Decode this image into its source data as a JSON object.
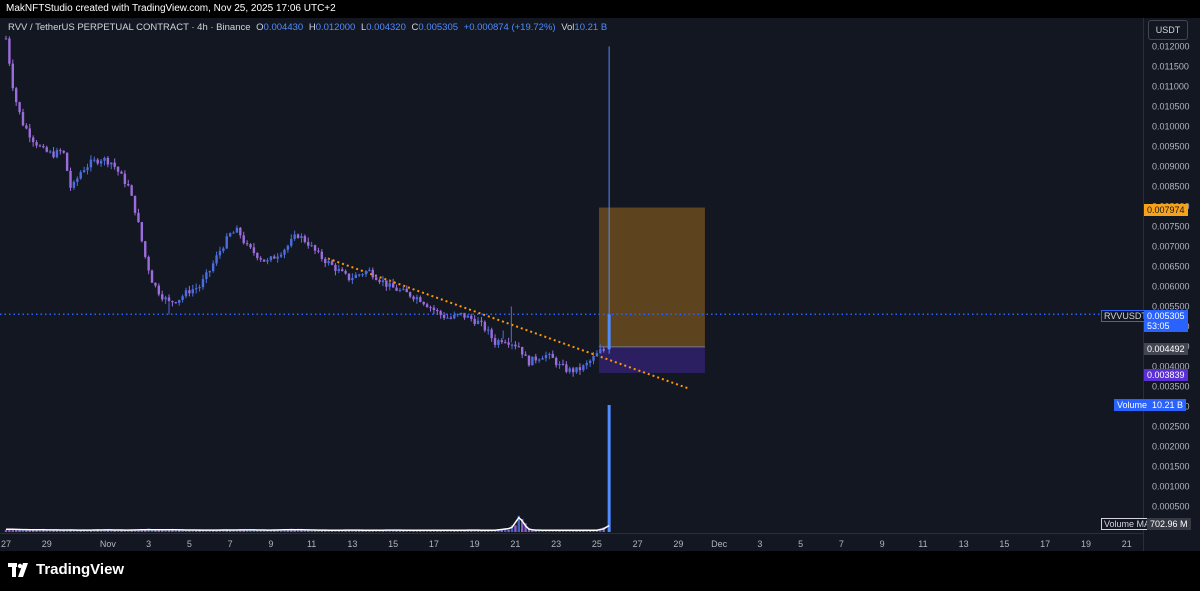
{
  "header": {
    "credit": "MakNFTStudio created with TradingView.com, Nov 25, 2025 17:06 UTC+2"
  },
  "legend": {
    "symbol": "RVV / TetherUS PERPETUAL CONTRACT · 4h · Binance",
    "o_label": "O",
    "o_value": "0.004430",
    "h_label": "H",
    "h_value": "0.012000",
    "l_label": "L",
    "l_value": "0.004320",
    "c_label": "C",
    "c_value": "0.005305",
    "change": "+0.000874 (+19.72%)",
    "vol_label": "Vol",
    "vol_value": "10.21 B"
  },
  "axis_unit": "USDT",
  "price_tags": {
    "target": {
      "value": "0.007974",
      "color": "#f7a21b"
    },
    "current": {
      "symbol": "RVVUSDT.P",
      "value": "0.005305",
      "countdown": "53:05",
      "color": "#2962ff"
    },
    "entry": {
      "value": "0.004492",
      "color": "#434651"
    },
    "stop": {
      "value": "0.003839",
      "color": "#5b2fd6"
    },
    "volume": {
      "label": "Volume",
      "value": "10.21 B"
    },
    "volume_ma": {
      "label": "Volume MA",
      "value": "702.96 M"
    }
  },
  "brand": {
    "name": "TradingView"
  },
  "chart_data": {
    "type": "candlestick",
    "interval": "4h",
    "ylim": [
      0.0,
      0.0123
    ],
    "y_ticks": [
      "0.012000",
      "0.011500",
      "0.011000",
      "0.010500",
      "0.010000",
      "0.009500",
      "0.009000",
      "0.008500",
      "0.008000",
      "0.007500",
      "0.007000",
      "0.006500",
      "0.006000",
      "0.005500",
      "0.005000",
      "0.004500",
      "0.004000",
      "0.003500",
      "0.003000",
      "0.002500",
      "0.002000",
      "0.001500",
      "0.001000",
      "0.000500"
    ],
    "x_ticks": [
      "27",
      "29",
      "Nov",
      "3",
      "5",
      "7",
      "9",
      "11",
      "13",
      "15",
      "17",
      "19",
      "21",
      "23",
      "25",
      "27",
      "29",
      "Dec",
      "3",
      "5",
      "7",
      "9",
      "11",
      "13",
      "15",
      "17",
      "19",
      "21"
    ],
    "x_tick_days": [
      0,
      2,
      5,
      7,
      9,
      11,
      13,
      15,
      17,
      19,
      21,
      23,
      25,
      27,
      29,
      31,
      33,
      35,
      37,
      39,
      41,
      43,
      45,
      47,
      49,
      51,
      53,
      55
    ],
    "x_range_days": [
      0,
      55.8
    ],
    "price_path": [
      [
        0,
        0.0122
      ],
      [
        0.4,
        0.0108
      ],
      [
        0.8,
        0.0101
      ],
      [
        1.3,
        0.0097
      ],
      [
        1.8,
        0.0094
      ],
      [
        2.3,
        0.0093
      ],
      [
        2.8,
        0.0094
      ],
      [
        3.2,
        0.0084
      ],
      [
        3.7,
        0.0089
      ],
      [
        4.2,
        0.0091
      ],
      [
        4.7,
        0.0092
      ],
      [
        5.2,
        0.0091
      ],
      [
        5.6,
        0.0088
      ],
      [
        6.0,
        0.0085
      ],
      [
        6.4,
        0.0078
      ],
      [
        6.8,
        0.0068
      ],
      [
        7.2,
        0.0061
      ],
      [
        7.6,
        0.0058
      ],
      [
        8.0,
        0.0056
      ],
      [
        8.5,
        0.0057
      ],
      [
        9.0,
        0.0059
      ],
      [
        9.5,
        0.006
      ],
      [
        10.0,
        0.0064
      ],
      [
        10.5,
        0.0069
      ],
      [
        11.0,
        0.0073
      ],
      [
        11.4,
        0.0074
      ],
      [
        11.8,
        0.007
      ],
      [
        12.3,
        0.0068
      ],
      [
        12.8,
        0.0066
      ],
      [
        13.3,
        0.0068
      ],
      [
        13.8,
        0.007
      ],
      [
        14.3,
        0.0073
      ],
      [
        14.8,
        0.0071
      ],
      [
        15.3,
        0.0068
      ],
      [
        15.8,
        0.0066
      ],
      [
        16.3,
        0.0064
      ],
      [
        16.8,
        0.0062
      ],
      [
        17.3,
        0.0063
      ],
      [
        17.8,
        0.0064
      ],
      [
        18.3,
        0.0062
      ],
      [
        18.8,
        0.006
      ],
      [
        19.3,
        0.0059
      ],
      [
        19.8,
        0.0058
      ],
      [
        20.3,
        0.0057
      ],
      [
        20.8,
        0.0055
      ],
      [
        21.3,
        0.0053
      ],
      [
        21.8,
        0.0052
      ],
      [
        22.3,
        0.0053
      ],
      [
        22.8,
        0.0052
      ],
      [
        23.2,
        0.0051
      ],
      [
        23.6,
        0.0049
      ],
      [
        24.0,
        0.0046
      ],
      [
        24.4,
        0.0047
      ],
      [
        24.8,
        0.0046
      ],
      [
        25.2,
        0.0045
      ],
      [
        25.6,
        0.0041
      ],
      [
        26.0,
        0.0042
      ],
      [
        26.4,
        0.0043
      ],
      [
        26.8,
        0.0042
      ],
      [
        27.2,
        0.004
      ],
      [
        27.6,
        0.0039
      ],
      [
        28.0,
        0.0039
      ],
      [
        28.4,
        0.004
      ],
      [
        28.8,
        0.0042
      ],
      [
        29.2,
        0.0044
      ],
      [
        29.6,
        0.0044
      ]
    ],
    "volume_path": [
      [
        0,
        240
      ],
      [
        1,
        200
      ],
      [
        2,
        180
      ],
      [
        3,
        170
      ],
      [
        4,
        160
      ],
      [
        5,
        180
      ],
      [
        6,
        160
      ],
      [
        7,
        200
      ],
      [
        8,
        190
      ],
      [
        9,
        170
      ],
      [
        10,
        160
      ],
      [
        11,
        170
      ],
      [
        12,
        180
      ],
      [
        13,
        160
      ],
      [
        14,
        200
      ],
      [
        15,
        170
      ],
      [
        16,
        150
      ],
      [
        17,
        160
      ],
      [
        18,
        150
      ],
      [
        19,
        160
      ],
      [
        20,
        150
      ],
      [
        21,
        140
      ],
      [
        22,
        150
      ],
      [
        23,
        160
      ],
      [
        24,
        140
      ],
      [
        24.8,
        320
      ],
      [
        25.2,
        1300
      ],
      [
        25.6,
        250
      ],
      [
        26,
        160
      ],
      [
        27,
        140
      ],
      [
        28,
        150
      ],
      [
        29,
        150
      ],
      [
        29.4,
        300
      ],
      [
        29.6,
        1480
      ]
    ],
    "last_candle": {
      "day": 29.6,
      "open": 0.00443,
      "high": 0.012,
      "low": 0.00432,
      "close": 0.005305,
      "volume": "10.21 B"
    },
    "volume_axis": {
      "volume_hi": 10210,
      "volume_ma": 702.96
    },
    "trendline": {
      "start": [
        15.8,
        0.0067
      ],
      "end": [
        33.5,
        0.00345
      ],
      "color": "#ff9800"
    },
    "position_box": {
      "start_day": 29.1,
      "end_day": 34.3,
      "target": 0.007974,
      "entry": 0.004492,
      "stop": 0.003839
    },
    "current_price_line": 0.005305
  }
}
